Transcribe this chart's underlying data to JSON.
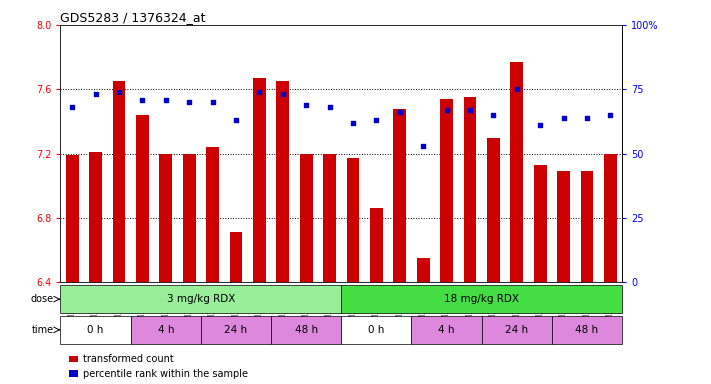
{
  "title": "GDS5283 / 1376324_at",
  "samples": [
    "GSM306952",
    "GSM306954",
    "GSM306956",
    "GSM306958",
    "GSM306960",
    "GSM306962",
    "GSM306964",
    "GSM306966",
    "GSM306968",
    "GSM306970",
    "GSM306972",
    "GSM306974",
    "GSM306976",
    "GSM306978",
    "GSM306980",
    "GSM306982",
    "GSM306984",
    "GSM306986",
    "GSM306988",
    "GSM306990",
    "GSM306992",
    "GSM306994",
    "GSM306996",
    "GSM306998"
  ],
  "red_values": [
    7.19,
    7.21,
    7.65,
    7.44,
    7.2,
    7.2,
    7.24,
    6.71,
    7.67,
    7.65,
    7.2,
    7.2,
    7.17,
    6.86,
    7.48,
    6.55,
    7.54,
    7.55,
    7.3,
    7.77,
    7.13,
    7.09,
    7.09,
    7.2
  ],
  "blue_values": [
    68,
    73,
    74,
    71,
    71,
    70,
    70,
    63,
    74,
    73,
    69,
    68,
    62,
    63,
    66,
    53,
    67,
    67,
    65,
    75,
    61,
    64,
    64,
    65
  ],
  "ylim_left": [
    6.4,
    8.0
  ],
  "ylim_right": [
    0,
    100
  ],
  "yticks_left": [
    6.4,
    6.8,
    7.2,
    7.6,
    8.0
  ],
  "yticks_right": [
    0,
    25,
    50,
    75,
    100
  ],
  "ytick_labels_right": [
    "0",
    "25",
    "50",
    "75",
    "100%"
  ],
  "bar_color": "#cc0000",
  "dot_color": "#0000cc",
  "background_color": "#ffffff",
  "dose_groups": [
    {
      "text": "3 mg/kg RDX",
      "color": "#99ee99",
      "start": 0,
      "end": 12
    },
    {
      "text": "18 mg/kg RDX",
      "color": "#44dd44",
      "start": 12,
      "end": 24
    }
  ],
  "time_groups": [
    {
      "text": "0 h",
      "color": "#ffffff",
      "start": 0,
      "end": 3
    },
    {
      "text": "4 h",
      "color": "#dd88dd",
      "start": 3,
      "end": 6
    },
    {
      "text": "24 h",
      "color": "#dd88dd",
      "start": 6,
      "end": 9
    },
    {
      "text": "48 h",
      "color": "#dd88dd",
      "start": 9,
      "end": 12
    },
    {
      "text": "0 h",
      "color": "#ffffff",
      "start": 12,
      "end": 15
    },
    {
      "text": "4 h",
      "color": "#dd88dd",
      "start": 15,
      "end": 18
    },
    {
      "text": "24 h",
      "color": "#dd88dd",
      "start": 18,
      "end": 21
    },
    {
      "text": "48 h",
      "color": "#dd88dd",
      "start": 21,
      "end": 24
    }
  ],
  "legend": [
    {
      "label": "transformed count",
      "color": "#cc0000",
      "marker": "s"
    },
    {
      "label": "percentile rank within the sample",
      "color": "#0000cc",
      "marker": "s"
    }
  ]
}
